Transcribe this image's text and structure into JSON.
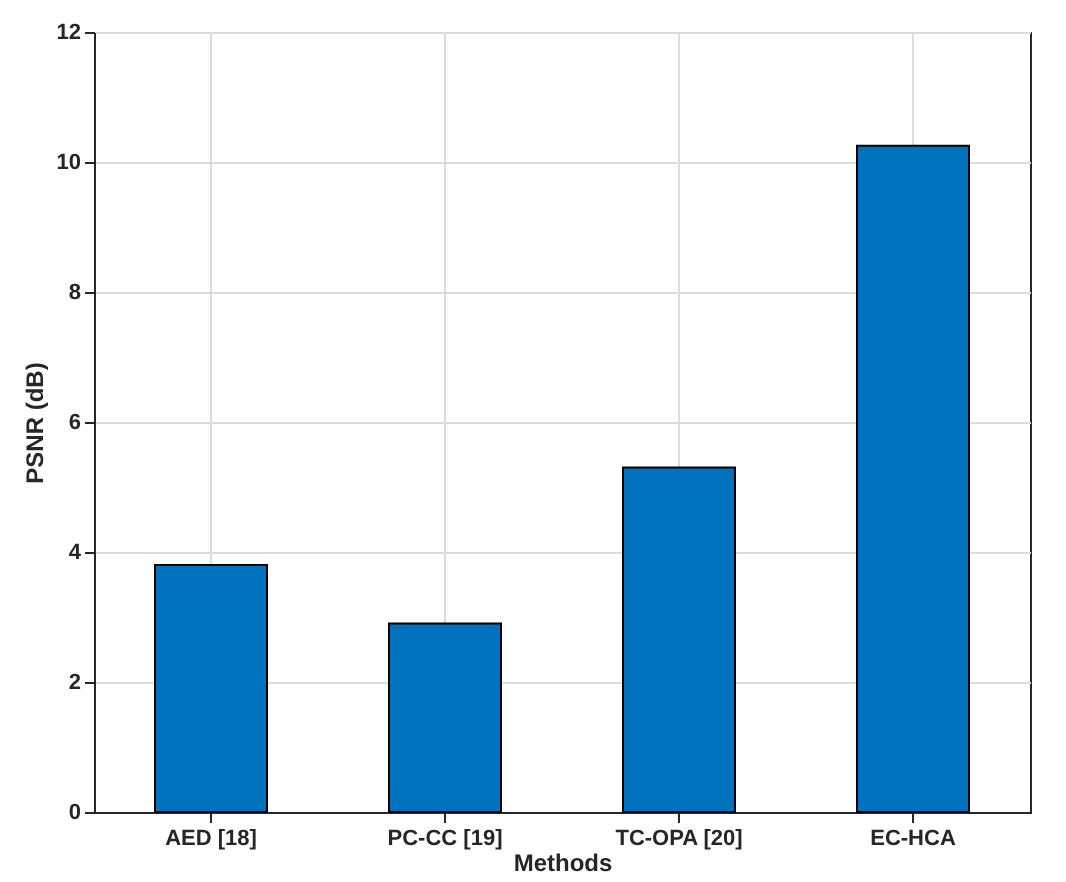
{
  "chart_data": {
    "type": "bar",
    "xlabel": "Methods",
    "ylabel": "PSNR (dB)",
    "categories": [
      "AED [18]",
      "PC-CC [19]",
      "TC-OPA [20]",
      "EC-HCA"
    ],
    "values": [
      3.8,
      2.9,
      5.3,
      10.25
    ],
    "color": "#0072bd",
    "ylim": [
      0,
      12
    ],
    "yticks": [
      0,
      2,
      4,
      6,
      8,
      10,
      12
    ],
    "grid": true
  }
}
